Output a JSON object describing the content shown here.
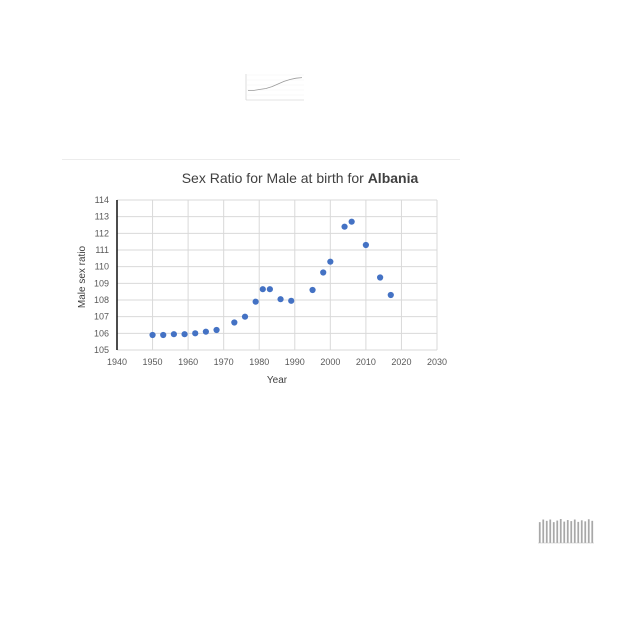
{
  "chart_data": [
    {
      "type": "scatter",
      "title": "Sex Ratio for Male at birth for",
      "title_emphasis": "Albania",
      "xlabel": "Year",
      "ylabel": "Male sex ratio",
      "xlim": [
        1940,
        2030
      ],
      "ylim": [
        105,
        114
      ],
      "x_ticks": [
        1940,
        1950,
        1960,
        1970,
        1980,
        1990,
        2000,
        2010,
        2020,
        2030
      ],
      "y_ticks": [
        105,
        106,
        107,
        108,
        109,
        110,
        111,
        112,
        113,
        114
      ],
      "grid": true,
      "legend": "none",
      "marker_color": "#4472c4",
      "x": [
        1950,
        1953,
        1956,
        1959,
        1962,
        1965,
        1968,
        1973,
        1976,
        1979,
        1981,
        1983,
        1986,
        1989,
        1995,
        1998,
        2000,
        2004,
        2006,
        2010,
        2014,
        2017
      ],
      "y": [
        105.9,
        105.9,
        105.95,
        105.95,
        106.0,
        106.1,
        106.2,
        106.65,
        107.0,
        107.9,
        108.65,
        108.65,
        108.05,
        107.95,
        108.6,
        109.65,
        110.3,
        112.4,
        112.7,
        111.3,
        109.35,
        108.3
      ]
    },
    {
      "type": "line",
      "title": "",
      "x": [
        1,
        2,
        3,
        4,
        5,
        6,
        7,
        8,
        9,
        10
      ],
      "y": [
        3,
        3,
        3.3,
        3.6,
        4.2,
        5,
        5.8,
        6.4,
        6.8,
        7
      ]
    },
    {
      "type": "bar",
      "title": "",
      "categories": [
        "1",
        "2",
        "3",
        "4",
        "5",
        "6",
        "7",
        "8",
        "9",
        "10",
        "11",
        "12",
        "13",
        "14",
        "15",
        "16"
      ],
      "values": [
        8,
        9,
        8.5,
        9,
        8,
        8.6,
        9.2,
        8.2,
        8.8,
        8.4,
        9,
        8.1,
        8.7,
        8.3,
        9.1,
        8.5
      ]
    }
  ]
}
